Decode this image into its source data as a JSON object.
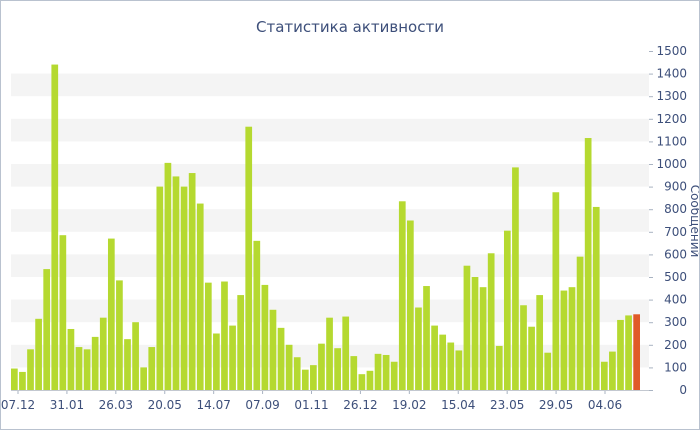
{
  "chart_data": {
    "type": "bar",
    "title": "Статистика активности",
    "ylabel": "Сообщений",
    "ylim": [
      0,
      1500
    ],
    "yticks": [
      0,
      100,
      200,
      300,
      400,
      500,
      600,
      700,
      800,
      900,
      1000,
      1100,
      1200,
      1300,
      1400,
      1500
    ],
    "xtick_labels": [
      "07.12",
      "31.01",
      "26.03",
      "20.05",
      "14.07",
      "07.09",
      "01.11",
      "26.12",
      "19.02",
      "15.04",
      "23.05",
      "29.05",
      "04.06"
    ],
    "grid": "horizontal-bands",
    "bar_color": "#b5d930",
    "highlight_color": "#e05a28",
    "values": [
      95,
      80,
      180,
      315,
      535,
      1440,
      685,
      270,
      190,
      180,
      235,
      320,
      670,
      485,
      225,
      300,
      100,
      190,
      900,
      1005,
      945,
      900,
      960,
      825,
      475,
      250,
      480,
      285,
      420,
      1165,
      660,
      465,
      355,
      275,
      200,
      145,
      90,
      110,
      205,
      320,
      185,
      325,
      150,
      70,
      85,
      160,
      155,
      125,
      835,
      750,
      365,
      460,
      285,
      245,
      210,
      175,
      550,
      500,
      455,
      605,
      195,
      705,
      985,
      375,
      280,
      420,
      165,
      875,
      440,
      455,
      590,
      1115,
      810,
      125,
      170,
      310,
      330,
      335
    ]
  }
}
